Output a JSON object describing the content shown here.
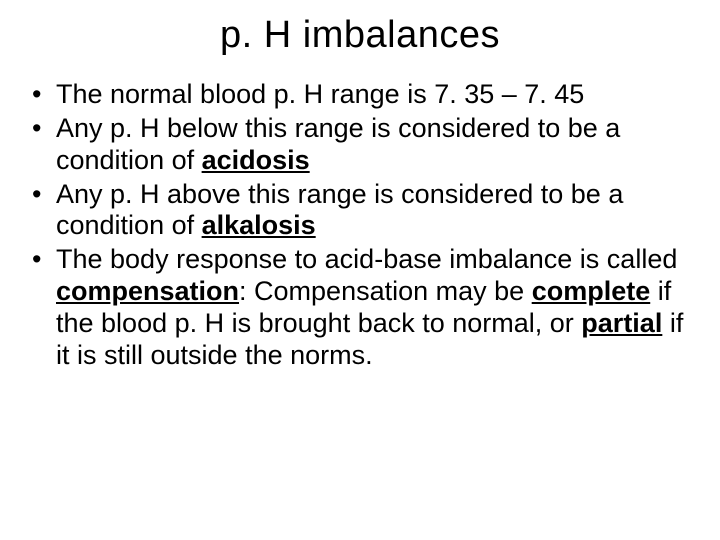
{
  "title": "p. H imbalances",
  "bullets": [
    {
      "pre": "The normal blood p. H range is 7. 35 – 7. 45",
      "key": "",
      "post": ""
    },
    {
      "pre": "Any p. H below this range is considered to be a condition of ",
      "key": "acidosis",
      "post": ""
    },
    {
      "pre": "Any p. H above this range is considered to be a condition of ",
      "key": "alkalosis",
      "post": ""
    },
    {
      "pre": "The body response to acid-base imbalance is called ",
      "key": "compensation",
      "post": ": Compensation may be ",
      "key2": "complete",
      "mid2": " if the blood p. H is brought back to normal, or ",
      "key3": "partial",
      "tail": " if it is still outside the norms."
    }
  ],
  "style": {
    "background_color": "#ffffff",
    "text_color": "#000000",
    "title_fontsize": 38,
    "body_fontsize": 27,
    "font_family": "Arial"
  }
}
